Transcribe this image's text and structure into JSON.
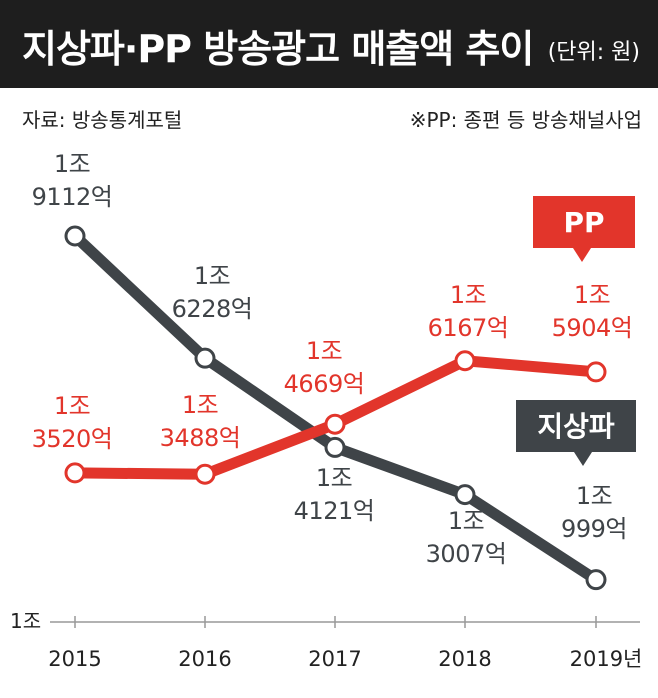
{
  "header": {
    "title": "지상파·PP 방송광고 매출액 추이",
    "unit": "(단위: 원)"
  },
  "source": "자료: 방송통계포털",
  "note": "※PP: 종편 등 방송채널사업",
  "colors": {
    "broadcast": "#3f4448",
    "pp": "#e2352b",
    "header_bg": "#1e1e1e"
  },
  "chart_data": {
    "type": "line",
    "title": "지상파·PP 방송광고 매출액 추이",
    "unit": "(단위: 원)",
    "categories": [
      "2015",
      "2016",
      "2017",
      "2018",
      "2019년"
    ],
    "y_axis_label": "1조",
    "ylim_100m_won": [
      10000,
      20000
    ],
    "series": [
      {
        "name": "지상파",
        "badge": "지상파",
        "values_100m_won": [
          19112,
          16228,
          14121,
          13007,
          10999
        ],
        "labels": [
          [
            "1조",
            "9112억"
          ],
          [
            "1조",
            "6228억"
          ],
          [
            "1조",
            "4121억"
          ],
          [
            "1조",
            "3007억"
          ],
          [
            "1조",
            "999억"
          ]
        ]
      },
      {
        "name": "PP",
        "badge": "PP",
        "values_100m_won": [
          13520,
          13488,
          14669,
          16167,
          15904
        ],
        "labels": [
          [
            "1조",
            "3520억"
          ],
          [
            "1조",
            "3488억"
          ],
          [
            "1조",
            "4669억"
          ],
          [
            "1조",
            "6167억"
          ],
          [
            "1조",
            "5904억"
          ]
        ]
      }
    ]
  }
}
